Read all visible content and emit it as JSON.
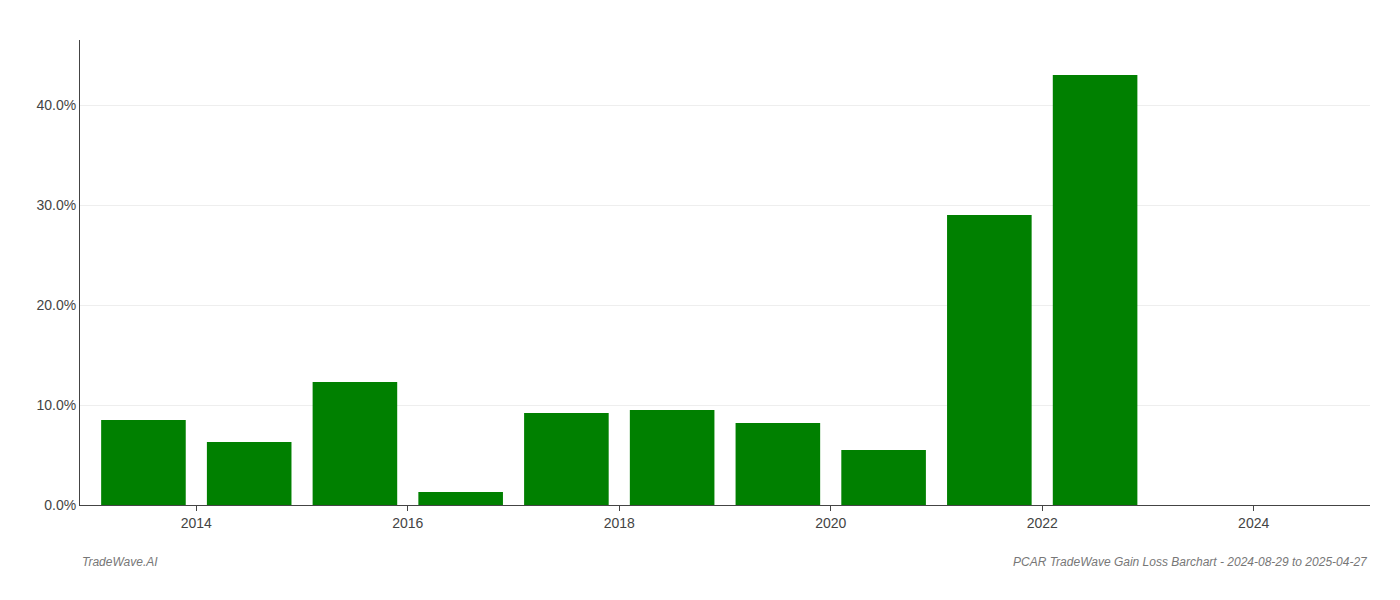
{
  "chart_data": {
    "type": "bar",
    "x": [
      2013.5,
      2014.5,
      2015.5,
      2016.5,
      2017.5,
      2018.5,
      2019.5,
      2020.5,
      2021.5,
      2022.5
    ],
    "values": [
      0.085,
      0.063,
      0.123,
      0.013,
      0.092,
      0.095,
      0.082,
      0.055,
      0.29,
      0.43
    ],
    "color": "#008000",
    "xlim": [
      2012.9,
      2025.1
    ],
    "xticks": [
      2014,
      2016,
      2018,
      2020,
      2022,
      2024
    ],
    "ylim": [
      0,
      0.465
    ],
    "yticks": [
      {
        "value": 0.0,
        "label": "0.0%"
      },
      {
        "value": 0.1,
        "label": "10.0%"
      },
      {
        "value": 0.2,
        "label": "20.0%"
      },
      {
        "value": 0.3,
        "label": "30.0%"
      },
      {
        "value": 0.4,
        "label": "40.0%"
      }
    ],
    "grid": true,
    "annotations": [
      "TradeWave.AI",
      "PCAR TradeWave Gain Loss Barchart - 2024-08-29 to 2025-04-27"
    ]
  }
}
